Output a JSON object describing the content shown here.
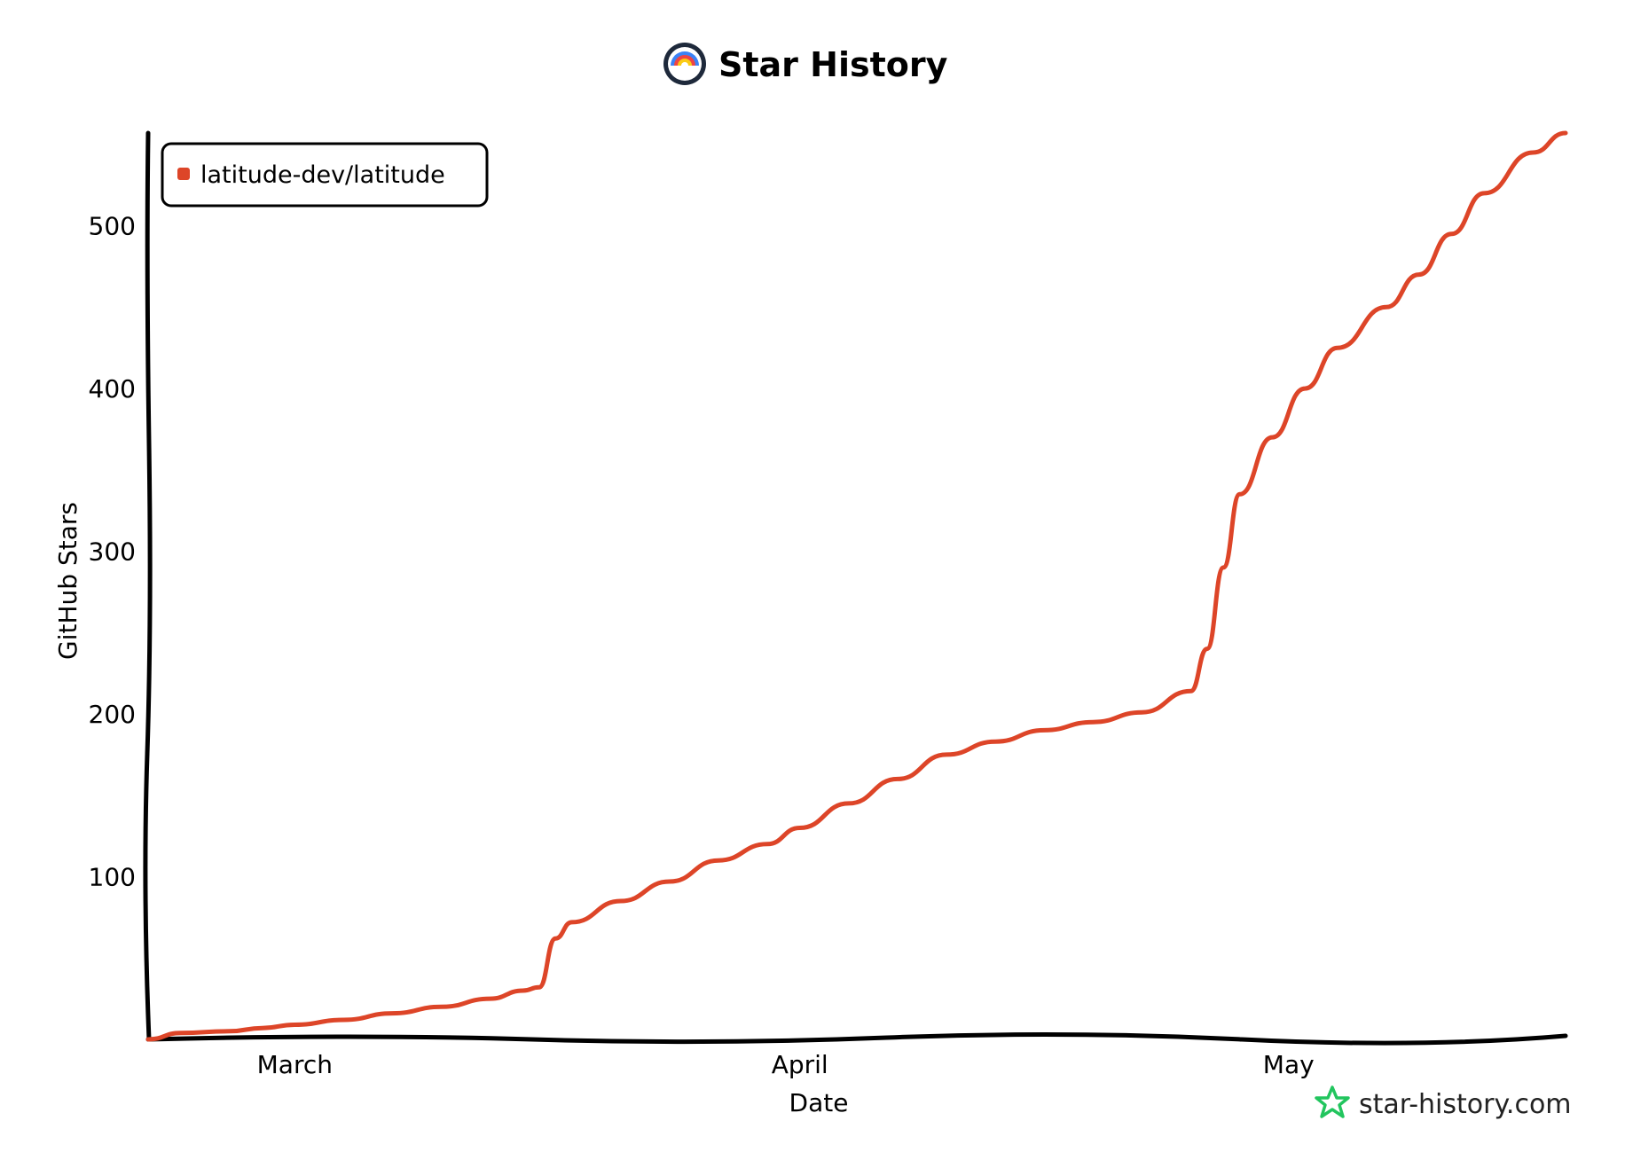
{
  "header": {
    "title": "Star History"
  },
  "branding": {
    "site": "star-history.com"
  },
  "colors": {
    "series": "#dd4528",
    "axis": "#000000",
    "brand_star": "#22c55e",
    "logo_ring_outer": "#1e293b",
    "logo_red": "#ef4444",
    "logo_blue": "#3b82f6",
    "logo_yellow": "#facc15"
  },
  "icons": {
    "logo": "star-history-logo-icon",
    "brand": "star-outline-icon"
  },
  "chart_data": {
    "type": "line",
    "title": "Star History",
    "xlabel": "Date",
    "ylabel": "GitHub Stars",
    "x_tick_labels": [
      {
        "label": "March",
        "date": "2024-03-01"
      },
      {
        "label": "April",
        "date": "2024-04-01"
      },
      {
        "label": "May",
        "date": "2024-05-01"
      }
    ],
    "y_ticks": [
      100,
      200,
      300,
      400,
      500
    ],
    "xlim": [
      "2024-02-21",
      "2024-05-18"
    ],
    "ylim": [
      0,
      557
    ],
    "legend_position": "top-left",
    "grid": false,
    "series": [
      {
        "name": "latitude-dev/latitude",
        "points": [
          {
            "x": "2024-02-21",
            "y": 0
          },
          {
            "x": "2024-02-23",
            "y": 4
          },
          {
            "x": "2024-02-26",
            "y": 5
          },
          {
            "x": "2024-02-28",
            "y": 7
          },
          {
            "x": "2024-03-01",
            "y": 9
          },
          {
            "x": "2024-03-04",
            "y": 12
          },
          {
            "x": "2024-03-07",
            "y": 16
          },
          {
            "x": "2024-03-10",
            "y": 20
          },
          {
            "x": "2024-03-13",
            "y": 25
          },
          {
            "x": "2024-03-15",
            "y": 30
          },
          {
            "x": "2024-03-16",
            "y": 32
          },
          {
            "x": "2024-03-17",
            "y": 62
          },
          {
            "x": "2024-03-18",
            "y": 72
          },
          {
            "x": "2024-03-21",
            "y": 85
          },
          {
            "x": "2024-03-24",
            "y": 97
          },
          {
            "x": "2024-03-27",
            "y": 110
          },
          {
            "x": "2024-03-30",
            "y": 120
          },
          {
            "x": "2024-04-01",
            "y": 130
          },
          {
            "x": "2024-04-04",
            "y": 145
          },
          {
            "x": "2024-04-07",
            "y": 160
          },
          {
            "x": "2024-04-10",
            "y": 175
          },
          {
            "x": "2024-04-13",
            "y": 183
          },
          {
            "x": "2024-04-16",
            "y": 190
          },
          {
            "x": "2024-04-19",
            "y": 195
          },
          {
            "x": "2024-04-22",
            "y": 201
          },
          {
            "x": "2024-04-25",
            "y": 214
          },
          {
            "x": "2024-04-26",
            "y": 240
          },
          {
            "x": "2024-04-27",
            "y": 290
          },
          {
            "x": "2024-04-28",
            "y": 335
          },
          {
            "x": "2024-04-30",
            "y": 370
          },
          {
            "x": "2024-05-02",
            "y": 400
          },
          {
            "x": "2024-05-04",
            "y": 425
          },
          {
            "x": "2024-05-07",
            "y": 450
          },
          {
            "x": "2024-05-09",
            "y": 470
          },
          {
            "x": "2024-05-11",
            "y": 495
          },
          {
            "x": "2024-05-13",
            "y": 520
          },
          {
            "x": "2024-05-16",
            "y": 545
          },
          {
            "x": "2024-05-18",
            "y": 557
          }
        ]
      }
    ]
  }
}
